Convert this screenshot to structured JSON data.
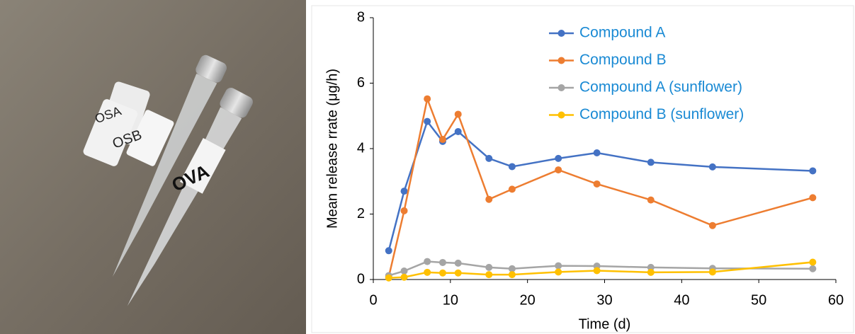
{
  "photo": {
    "labels": [
      "OSA",
      "OSB",
      "OVA"
    ]
  },
  "chart_data": {
    "type": "line",
    "x_label": "Time (d)",
    "y_label": "Mean release rrate  (μg/h)",
    "x": [
      2,
      4,
      7,
      9,
      11,
      15,
      18,
      24,
      29,
      36,
      44,
      57
    ],
    "series": [
      {
        "name": "Compound A",
        "color": "#4472c4",
        "values": [
          0.88,
          2.7,
          4.83,
          4.22,
          4.52,
          3.7,
          3.45,
          3.7,
          3.87,
          3.58,
          3.44,
          3.32
        ]
      },
      {
        "name": "Compound B",
        "color": "#ed7d31",
        "values": [
          0.08,
          2.1,
          5.52,
          4.28,
          5.05,
          2.45,
          2.76,
          3.35,
          2.92,
          2.43,
          1.65,
          2.5
        ]
      },
      {
        "name": "Compound A (sunflower)",
        "color": "#a5a5a5",
        "values": [
          0.12,
          0.26,
          0.55,
          0.52,
          0.5,
          0.37,
          0.33,
          0.42,
          0.41,
          0.37,
          0.34,
          0.33
        ]
      },
      {
        "name": "Compound B (sunflower)",
        "color": "#ffc000",
        "values": [
          0.05,
          0.07,
          0.22,
          0.2,
          0.2,
          0.15,
          0.15,
          0.23,
          0.27,
          0.22,
          0.23,
          0.53
        ]
      }
    ],
    "legend_text_color": "#1a8ad4",
    "legend": "upper center",
    "xlim": [
      0,
      60
    ],
    "xticks": [
      0,
      10,
      20,
      30,
      40,
      50,
      60
    ],
    "ylim": [
      0,
      8
    ],
    "yticks": [
      0,
      2,
      4,
      6,
      8
    ],
    "grid": false
  }
}
